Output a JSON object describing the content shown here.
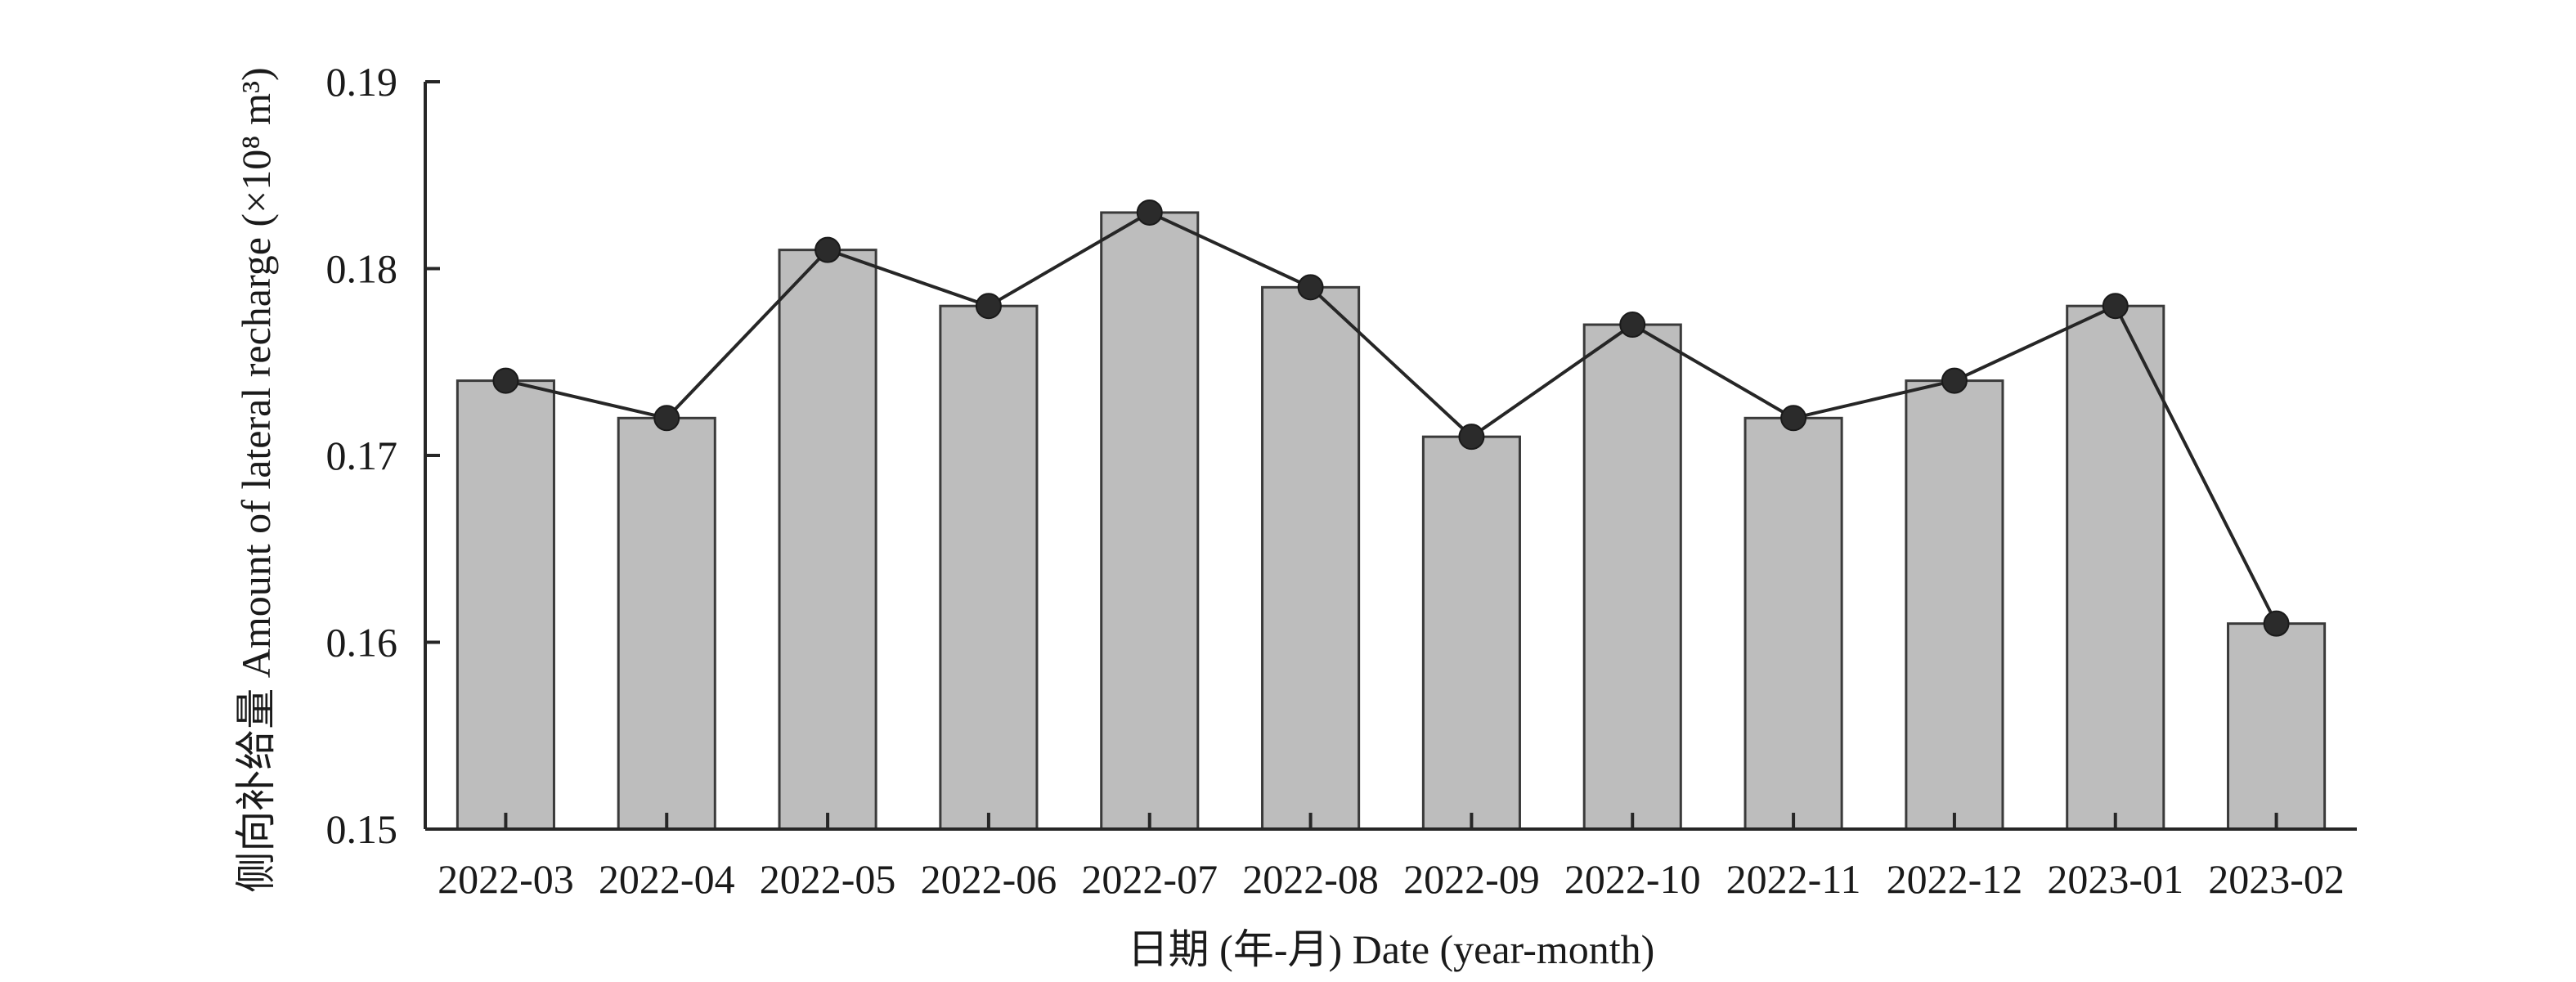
{
  "chart_data": {
    "type": "bar",
    "categories": [
      "2022-03",
      "2022-04",
      "2022-05",
      "2022-06",
      "2022-07",
      "2022-08",
      "2022-09",
      "2022-10",
      "2022-11",
      "2022-12",
      "2023-01",
      "2023-02"
    ],
    "series": [
      {
        "type": "bar",
        "values": [
          0.174,
          0.172,
          0.181,
          0.178,
          0.183,
          0.179,
          0.171,
          0.177,
          0.172,
          0.174,
          0.178,
          0.161
        ]
      },
      {
        "type": "line",
        "values": [
          0.174,
          0.172,
          0.181,
          0.178,
          0.183,
          0.179,
          0.171,
          0.177,
          0.172,
          0.174,
          0.178,
          0.161
        ]
      }
    ],
    "xlabel": "日期 (年-月) Date (year-month)",
    "ylabel": "侧向补给量 Amount of lateral recharge (×10⁸ m³)",
    "ylim": [
      0.15,
      0.19
    ],
    "yticks": [
      "0.15",
      "0.16",
      "0.17",
      "0.18",
      "0.19"
    ],
    "grid": false,
    "colors": {
      "bar_fill": "#bdbdbd",
      "bar_edge": "#3a3a3a",
      "line": "#262626",
      "marker": "#2b2b2b"
    }
  }
}
